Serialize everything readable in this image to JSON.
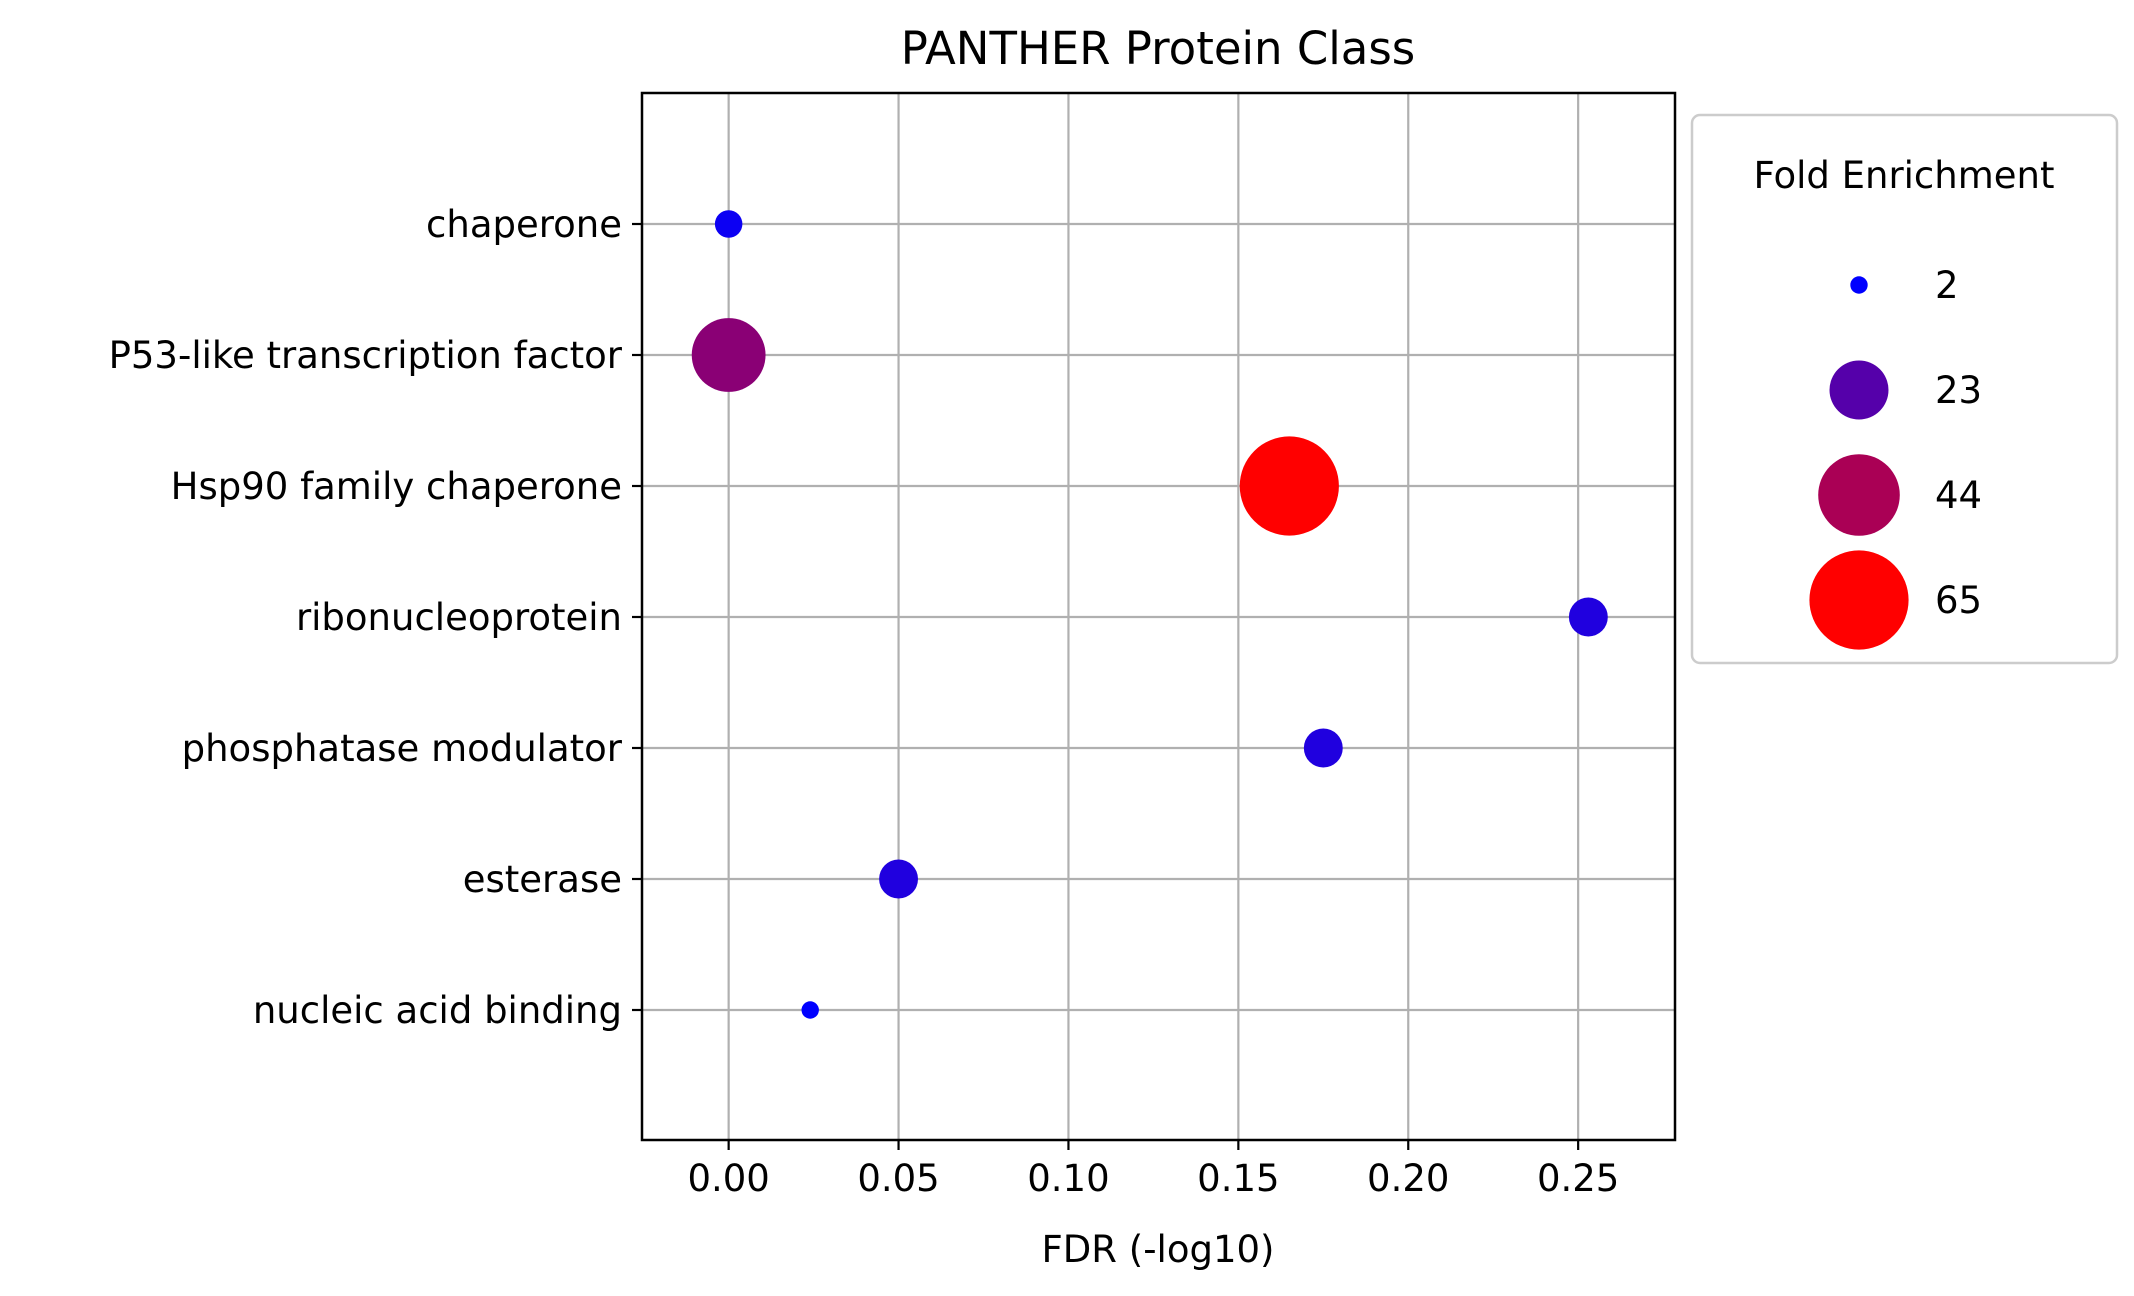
{
  "chart_data": {
    "type": "scatter",
    "title": "PANTHER Protein Class",
    "xlabel": "FDR (-log10)",
    "ylabel": "",
    "xlim": [
      -0.0255,
      0.2785
    ],
    "x_ticks": [
      0.0,
      0.05,
      0.1,
      0.15,
      0.2,
      0.25
    ],
    "x_tick_labels": [
      "0.00",
      "0.05",
      "0.10",
      "0.15",
      "0.20",
      "0.25"
    ],
    "grid": true,
    "categories": [
      "chaperone",
      "P53-like transcription factor",
      "Hsp90 family chaperone",
      "ribonucleoprotein",
      "phosphatase modulator",
      "esterase",
      "nucleic acid binding"
    ],
    "points": [
      {
        "category": "chaperone",
        "x": 0.0,
        "fold_enrichment": 5
      },
      {
        "category": "P53-like transcription factor",
        "x": 0.0,
        "fold_enrichment": 36
      },
      {
        "category": "Hsp90 family chaperone",
        "x": 0.165,
        "fold_enrichment": 65
      },
      {
        "category": "ribonucleoprotein",
        "x": 0.253,
        "fold_enrichment": 10
      },
      {
        "category": "phosphatase modulator",
        "x": 0.175,
        "fold_enrichment": 10
      },
      {
        "category": "esterase",
        "x": 0.05,
        "fold_enrichment": 10
      },
      {
        "category": "nucleic acid binding",
        "x": 0.024,
        "fold_enrichment": 2
      }
    ],
    "size_legend": {
      "title": "Fold Enrichment",
      "placement": "outside-right-top",
      "items": [
        {
          "label": "2",
          "value": 2
        },
        {
          "label": "23",
          "value": 23
        },
        {
          "label": "44",
          "value": 44
        },
        {
          "label": "65",
          "value": 65
        }
      ]
    },
    "color_scale": {
      "min_value": 2,
      "max_value": 65,
      "low_color": "#0000ff",
      "high_color": "#ff0000"
    }
  }
}
